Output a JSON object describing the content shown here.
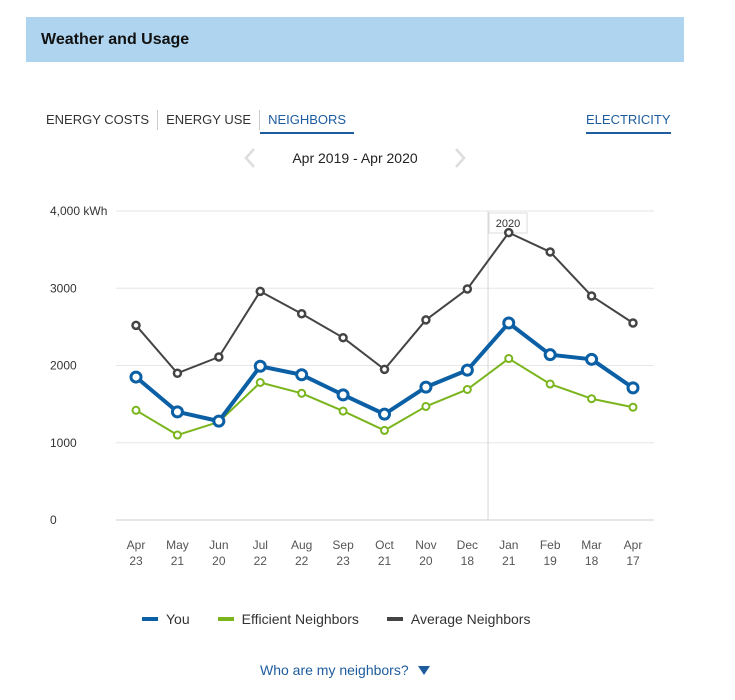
{
  "header": {
    "title": "Weather and Usage"
  },
  "tabs": [
    {
      "label": "ENERGY COSTS",
      "active": false
    },
    {
      "label": "ENERGY USE",
      "active": false
    },
    {
      "label": "NEIGHBORS",
      "active": true
    }
  ],
  "fuel": {
    "label": "ELECTRICITY"
  },
  "date_range": {
    "label": "Apr 2019 - Apr 2020"
  },
  "colors": {
    "accent": "#1d5c9e",
    "you": "#0b5fa5",
    "efficient": "#7ab51d",
    "average": "#444444",
    "header_bg": "#aed4ef"
  },
  "chart_data": {
    "type": "line",
    "categories": [
      [
        "Apr",
        "23"
      ],
      [
        "May",
        "21"
      ],
      [
        "Jun",
        "20"
      ],
      [
        "Jul",
        "22"
      ],
      [
        "Aug",
        "22"
      ],
      [
        "Sep",
        "23"
      ],
      [
        "Oct",
        "21"
      ],
      [
        "Nov",
        "20"
      ],
      [
        "Dec",
        "18"
      ],
      [
        "Jan",
        "21"
      ],
      [
        "Feb",
        "19"
      ],
      [
        "Mar",
        "18"
      ],
      [
        "Apr",
        "17"
      ]
    ],
    "y_ticks": [
      {
        "value": 0,
        "label": "0"
      },
      {
        "value": 1000,
        "label": "1000"
      },
      {
        "value": 2000,
        "label": "2000"
      },
      {
        "value": 3000,
        "label": "3000"
      },
      {
        "value": 4000,
        "label": "4,000 kWh"
      }
    ],
    "ylim": [
      0,
      4000
    ],
    "grid": true,
    "year_marker": {
      "label": "2020",
      "before_index": 9
    },
    "series": [
      {
        "name": "You",
        "values": [
          1850,
          1400,
          1280,
          1990,
          1880,
          1620,
          1370,
          1720,
          1940,
          2550,
          2140,
          2080,
          1710
        ]
      },
      {
        "name": "Efficient Neighbors",
        "values": [
          1420,
          1100,
          1270,
          1780,
          1640,
          1410,
          1160,
          1470,
          1690,
          2090,
          1760,
          1570,
          1460
        ]
      },
      {
        "name": "Average Neighbors",
        "values": [
          2520,
          1900,
          2110,
          2960,
          2670,
          2360,
          1950,
          2590,
          2990,
          3720,
          3470,
          2900,
          2550
        ]
      }
    ],
    "legend_position": "bottom"
  },
  "footer": {
    "link_label": "Who are my neighbors?"
  }
}
